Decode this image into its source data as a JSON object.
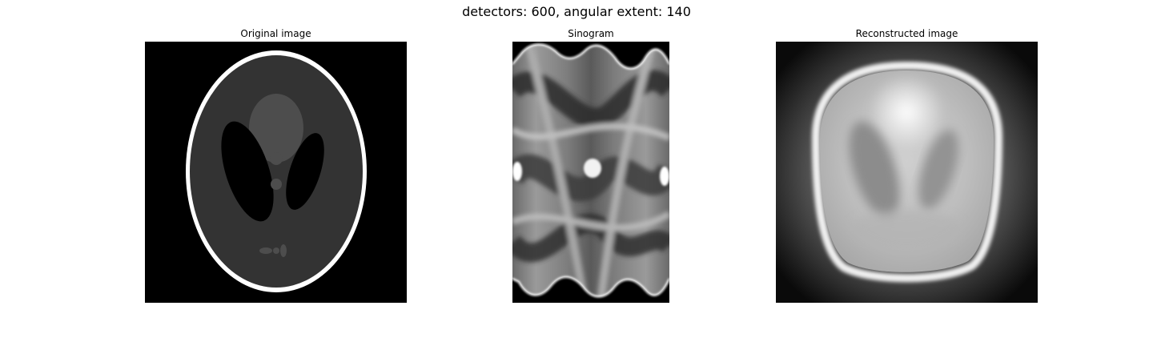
{
  "figure": {
    "title": "detectors: 600, angular extent: 140"
  },
  "panels": [
    {
      "title": "Original image",
      "icon": "phantom-image"
    },
    {
      "title": "Sinogram",
      "icon": "sinogram-image"
    },
    {
      "title": "Reconstructed image",
      "icon": "reconstruction-image"
    }
  ]
}
